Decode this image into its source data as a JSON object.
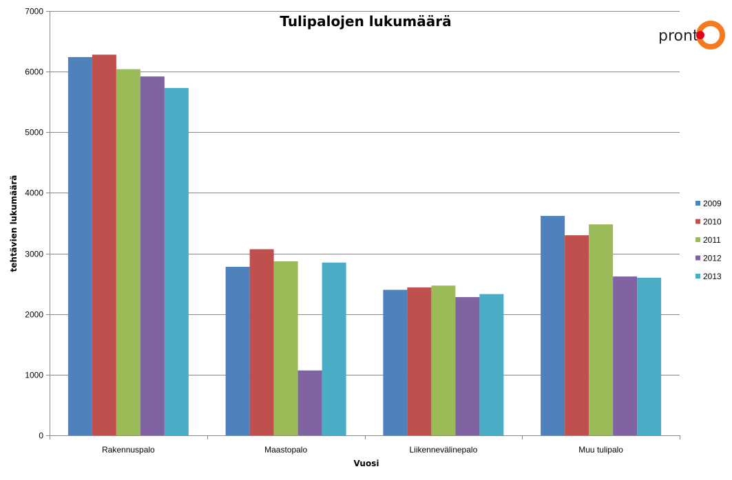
{
  "chart_data": {
    "type": "bar",
    "title": "Tulipalojen lukumäärä",
    "xlabel": "Vuosi",
    "ylabel": "tehtävien lukumäärä",
    "ylim": [
      0,
      7000
    ],
    "yticks": [
      0,
      1000,
      2000,
      3000,
      4000,
      5000,
      6000,
      7000
    ],
    "grid": true,
    "legend_position": "right",
    "categories": [
      "Rakennuspalo",
      "Maastopalo",
      "Liikennevälinepalo",
      "Muu tulipalo"
    ],
    "series": [
      {
        "name": "2009",
        "color": "#4F81BD",
        "values": [
          6240,
          2780,
          2400,
          3620
        ]
      },
      {
        "name": "2010",
        "color": "#C0504D",
        "values": [
          6280,
          3070,
          2440,
          3300
        ]
      },
      {
        "name": "2011",
        "color": "#9BBB59",
        "values": [
          6040,
          2870,
          2470,
          3480
        ]
      },
      {
        "name": "2012",
        "color": "#8064A2",
        "values": [
          5920,
          1070,
          2280,
          2620
        ]
      },
      {
        "name": "2013",
        "color": "#4BACC6",
        "values": [
          5730,
          2850,
          2330,
          2600
        ]
      }
    ]
  },
  "logo": {
    "text": "pront",
    "ring_color": "#F47920",
    "dot_color": "#E2001A"
  }
}
